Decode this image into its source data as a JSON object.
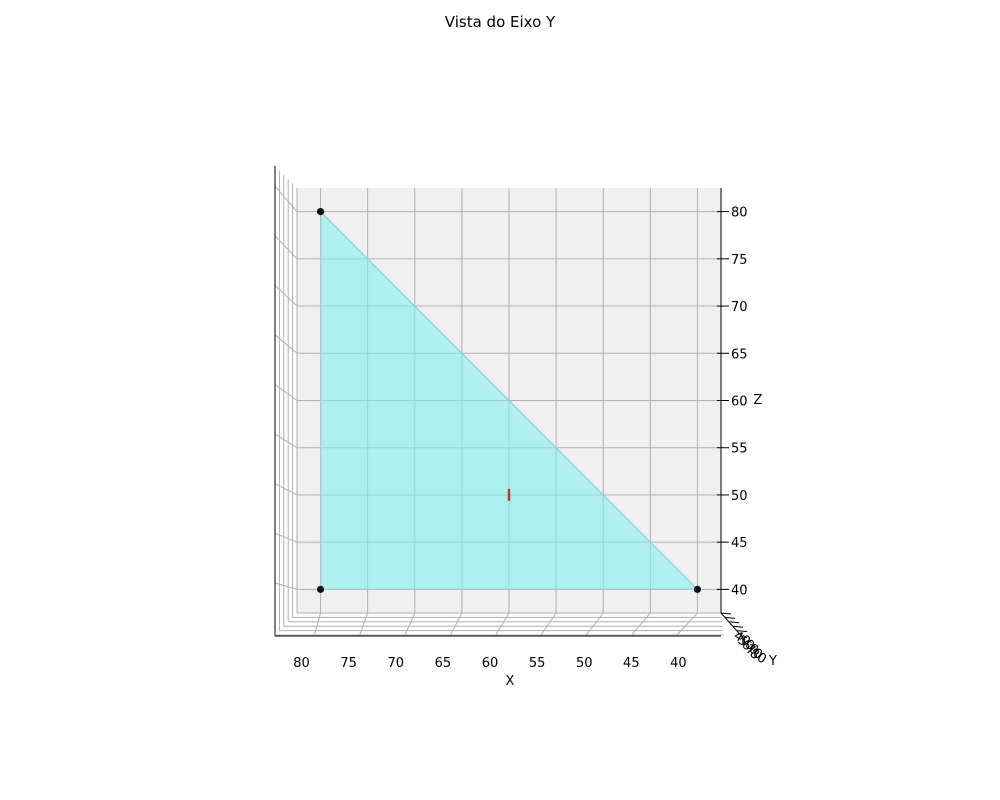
{
  "chart_data": {
    "type": "scatter",
    "view": "3d-projection-along-y",
    "title": "Vista do Eixo Y",
    "xlabel": "X",
    "ylabel": "Y",
    "zlabel": "Z",
    "xlim": [
      82.5,
      37.5
    ],
    "zlim": [
      37.5,
      82.5
    ],
    "x_ticks": [
      "80",
      "75",
      "70",
      "65",
      "60",
      "55",
      "50",
      "45",
      "40"
    ],
    "z_ticks": [
      "40",
      "45",
      "50",
      "55",
      "60",
      "65",
      "70",
      "75",
      "80"
    ],
    "y_ticks": [
      "40",
      "50",
      "60",
      "70",
      "80"
    ],
    "grid": true,
    "pane_color": "#f0f0f0",
    "points": [
      {
        "x": 80,
        "z": 80
      },
      {
        "x": 80,
        "z": 40
      },
      {
        "x": 40,
        "z": 40
      }
    ],
    "polygon": {
      "vertices": [
        {
          "x": 80,
          "z": 80
        },
        {
          "x": 80,
          "z": 40
        },
        {
          "x": 40,
          "z": 40
        }
      ],
      "fill_color": "#7ef0f0",
      "edge_color": "#a6c8c8"
    },
    "marker": {
      "x": 60,
      "z": 50,
      "color": "#c0392b"
    },
    "point_color": "#111111"
  }
}
